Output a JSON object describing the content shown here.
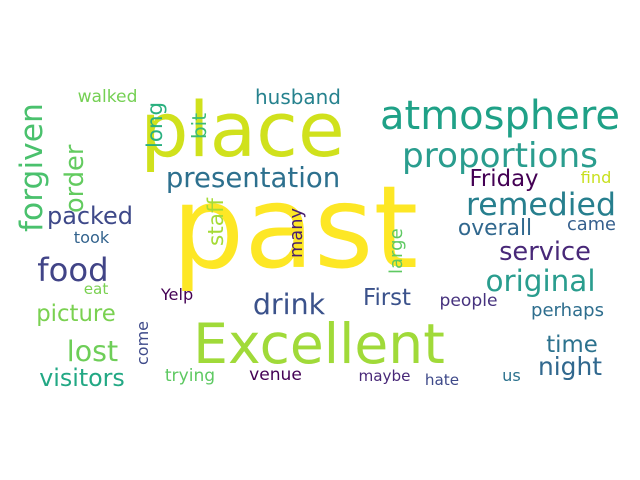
{
  "words": [
    {
      "text": "past",
      "color": "#fde725"
    },
    {
      "text": "place",
      "color": "#d0e11c"
    },
    {
      "text": "Excellent",
      "color": "#a0da39"
    },
    {
      "text": "atmosphere",
      "color": "#1fa187"
    },
    {
      "text": "proportions",
      "color": "#2a9d8e"
    },
    {
      "text": "presentation",
      "color": "#2d708e"
    },
    {
      "text": "remedied",
      "color": "#277f8e"
    },
    {
      "text": "food",
      "color": "#414487"
    },
    {
      "text": "original",
      "color": "#2a9d8e"
    },
    {
      "text": "service",
      "color": "#482878"
    },
    {
      "text": "overall",
      "color": "#31688e"
    },
    {
      "text": "forgiven",
      "color": "#4ac16d"
    },
    {
      "text": "order",
      "color": "#63cb5f"
    },
    {
      "text": "drink",
      "color": "#3b528b"
    },
    {
      "text": "First",
      "color": "#3b528b"
    },
    {
      "text": "Friday",
      "color": "#440154"
    },
    {
      "text": "lost",
      "color": "#6ece58"
    },
    {
      "text": "visitors",
      "color": "#22a884"
    },
    {
      "text": "picture",
      "color": "#7ad151"
    },
    {
      "text": "packed",
      "color": "#3e4989"
    },
    {
      "text": "time",
      "color": "#2c728e"
    },
    {
      "text": "night",
      "color": "#31688e"
    },
    {
      "text": "husband",
      "color": "#26828e"
    },
    {
      "text": "walked",
      "color": "#75d054"
    },
    {
      "text": "long",
      "color": "#2ab07f"
    },
    {
      "text": "bit",
      "color": "#3bbb75"
    },
    {
      "text": "staff",
      "color": "#a5db36"
    },
    {
      "text": "many",
      "color": "#481f70"
    },
    {
      "text": "large",
      "color": "#5ec962"
    },
    {
      "text": "came",
      "color": "#355f8d"
    },
    {
      "text": "find",
      "color": "#c8e020"
    },
    {
      "text": "took",
      "color": "#33638d"
    },
    {
      "text": "eat",
      "color": "#7ad151"
    },
    {
      "text": "Yelp",
      "color": "#440154"
    },
    {
      "text": "come",
      "color": "#3e4a89"
    },
    {
      "text": "people",
      "color": "#46327e"
    },
    {
      "text": "perhaps",
      "color": "#2e6e8e"
    },
    {
      "text": "trying",
      "color": "#5ec962"
    },
    {
      "text": "venue",
      "color": "#440154"
    },
    {
      "text": "maybe",
      "color": "#482878"
    },
    {
      "text": "hate",
      "color": "#3e4989"
    },
    {
      "text": "us",
      "color": "#2c728e"
    }
  ]
}
